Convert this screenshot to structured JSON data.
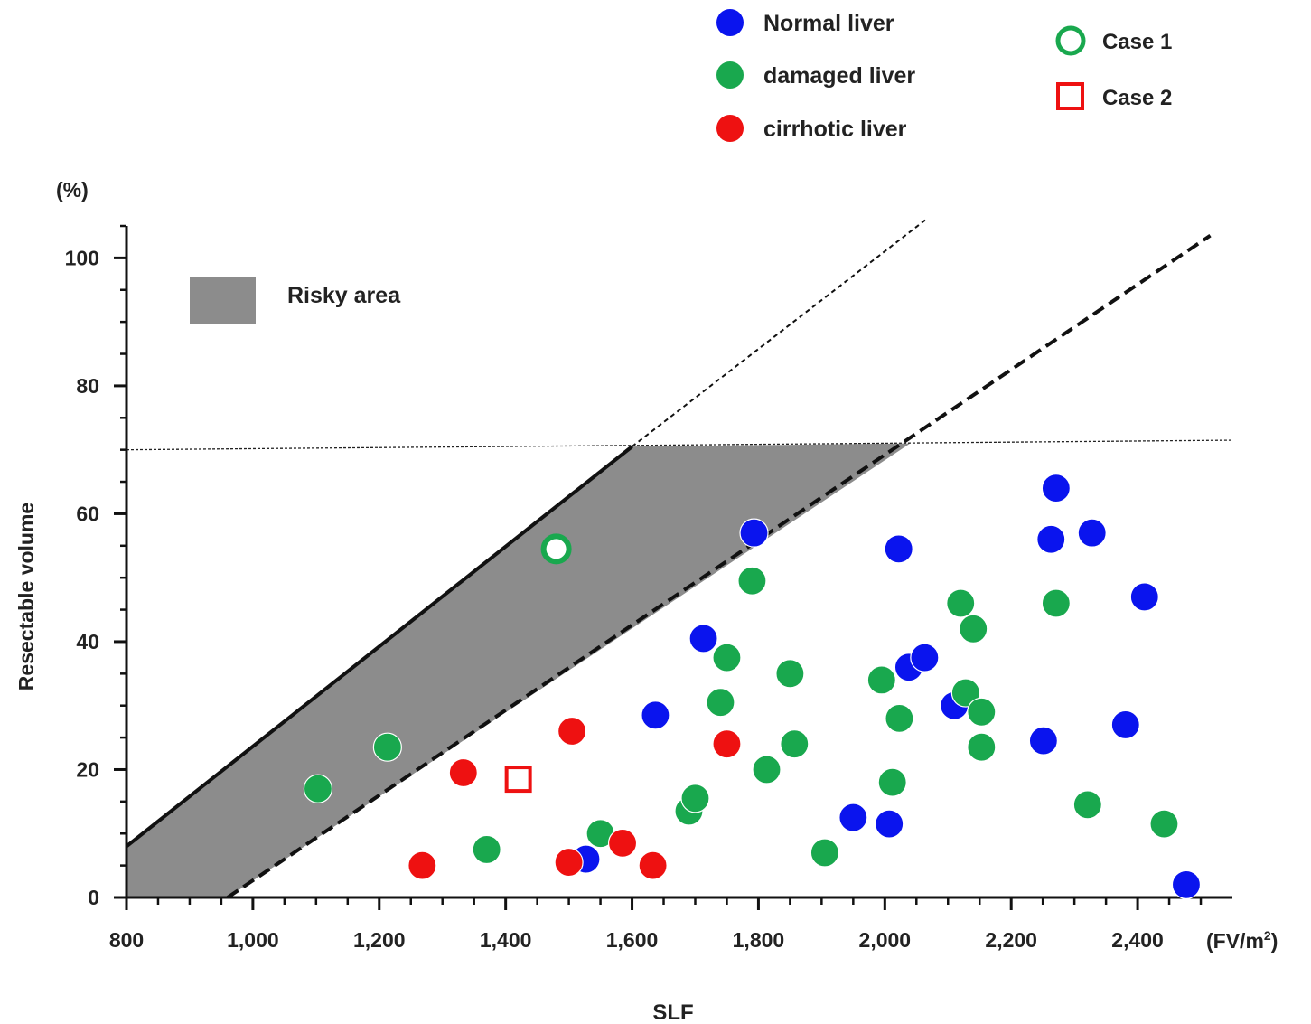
{
  "chart_data": {
    "type": "scatter",
    "xlabel": "SLF",
    "x_unit": "(FV/m2)",
    "ylabel": "Resectable volume",
    "y_unit": "(%)",
    "xlim": [
      800,
      2550
    ],
    "ylim": [
      0,
      105
    ],
    "x_ticks": [
      800,
      1000,
      1200,
      1400,
      1600,
      1800,
      2000,
      2200,
      2400
    ],
    "x_tick_labels": [
      "800",
      "1,000",
      "1,200",
      "1,400",
      "1,600",
      "1,800",
      "2,000",
      "2,200",
      "2,400"
    ],
    "y_ticks": [
      0,
      20,
      40,
      60,
      80,
      100
    ],
    "y_tick_labels": [
      "0",
      "20",
      "40",
      "60",
      "80",
      "100"
    ],
    "grid": false,
    "legend_position": "top-right",
    "colors": {
      "normal": "#0a14ee",
      "damaged": "#19a84e",
      "cirrhotic": "#ee1111",
      "risky_fill": "#8c8c8c"
    },
    "series": [
      {
        "name": "Normal liver",
        "color": "#0a14ee",
        "points": [
          [
            1527,
            6
          ],
          [
            1637,
            28.5
          ],
          [
            1713,
            40.5
          ],
          [
            1793,
            57
          ],
          [
            2022,
            54.5
          ],
          [
            2038,
            36
          ],
          [
            2063,
            37.5
          ],
          [
            2110,
            30
          ],
          [
            1950,
            12.5
          ],
          [
            2007,
            11.5
          ],
          [
            2251,
            24.5
          ],
          [
            2263,
            56
          ],
          [
            2271,
            64
          ],
          [
            2328,
            57
          ],
          [
            2381,
            27
          ],
          [
            2411,
            47
          ],
          [
            2477,
            2
          ]
        ]
      },
      {
        "name": "damaged liver",
        "color": "#19a84e",
        "points": [
          [
            1103,
            17
          ],
          [
            1213,
            23.5
          ],
          [
            1370,
            7.5
          ],
          [
            1550,
            10
          ],
          [
            1690,
            13.5
          ],
          [
            1700,
            15.5
          ],
          [
            1740,
            30.5
          ],
          [
            1750,
            37.5
          ],
          [
            1790,
            49.5
          ],
          [
            1813,
            20
          ],
          [
            1850,
            35
          ],
          [
            1857,
            24
          ],
          [
            1905,
            7
          ],
          [
            1995,
            34
          ],
          [
            2012,
            18
          ],
          [
            2023,
            28
          ],
          [
            2120,
            46
          ],
          [
            2128,
            32
          ],
          [
            2140,
            42
          ],
          [
            2153,
            29
          ],
          [
            2153,
            23.5
          ],
          [
            2271,
            46
          ],
          [
            2321,
            14.5
          ],
          [
            2442,
            11.5
          ]
        ]
      },
      {
        "name": "cirrhotic liver",
        "color": "#ee1111",
        "points": [
          [
            1268,
            5
          ],
          [
            1333,
            19.5
          ],
          [
            1500,
            5.5
          ],
          [
            1505,
            26
          ],
          [
            1585,
            8.5
          ],
          [
            1633,
            5
          ],
          [
            1750,
            24
          ]
        ]
      }
    ],
    "cases": [
      {
        "name": "Case 1",
        "marker": "open-circle",
        "color": "#19a84e",
        "point": [
          1480,
          54.5
        ]
      },
      {
        "name": "Case 2",
        "marker": "open-square",
        "color": "#ee1111",
        "point": [
          1420,
          18.5
        ]
      }
    ],
    "risky_area": {
      "label": "Risky area",
      "polygon": [
        [
          800,
          8
        ],
        [
          1600,
          70.5
        ],
        [
          2040,
          71
        ],
        [
          960,
          0
        ],
        [
          800,
          0
        ]
      ]
    },
    "reference_lines": [
      {
        "style": "thick-solid-then-dotted",
        "solid": [
          [
            800,
            8
          ],
          [
            1600,
            70.5
          ]
        ],
        "dotted": [
          [
            1600,
            70.5
          ],
          [
            2065,
            106
          ]
        ]
      },
      {
        "style": "thick-dashed",
        "points": [
          [
            960,
            0
          ],
          [
            2515,
            103.5
          ]
        ]
      },
      {
        "style": "thin-dotted",
        "points": [
          [
            800,
            70
          ],
          [
            2550,
            71.5
          ]
        ]
      }
    ]
  }
}
